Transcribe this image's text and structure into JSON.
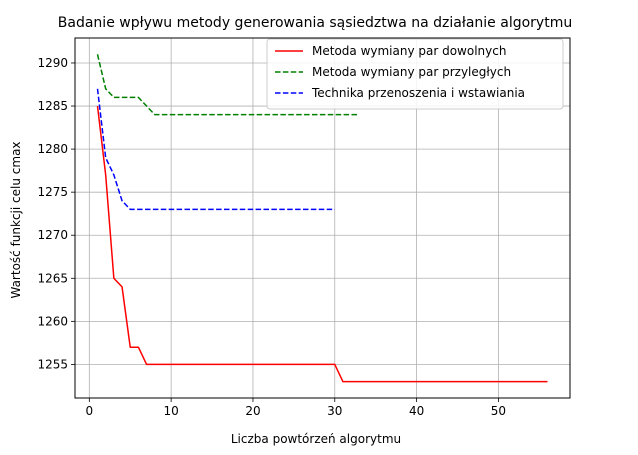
{
  "chart_data": {
    "type": "line",
    "title": "Badanie wpływu metody generowania sąsiedztwa na działanie algorytmu",
    "xlabel": "Liczba powtórzeń algorytmu",
    "ylabel": "Wartość funkcji celu cmax",
    "xlim": [
      -1.75,
      58.75
    ],
    "ylim": [
      1251.1,
      1292.9
    ],
    "xticks": [
      0,
      10,
      20,
      30,
      40,
      50
    ],
    "yticks": [
      1255,
      1260,
      1265,
      1270,
      1275,
      1280,
      1285,
      1290
    ],
    "grid": true,
    "legend_position": "top-right",
    "series": [
      {
        "name": "Metoda wymiany par dowolnych",
        "color": "#ff0000",
        "dash": "solid",
        "x": [
          1,
          2,
          3,
          4,
          5,
          6,
          7,
          30,
          31,
          56
        ],
        "y": [
          1285,
          1277,
          1265,
          1264,
          1257,
          1257,
          1255,
          1255,
          1253,
          1253
        ]
      },
      {
        "name": "Metoda wymiany par przyległych",
        "color": "#008000",
        "dash": "dashed",
        "x": [
          1,
          2,
          3,
          6,
          7,
          8,
          33
        ],
        "y": [
          1291,
          1287,
          1286,
          1286,
          1285,
          1284,
          1284
        ]
      },
      {
        "name": "Technika przenoszenia i wstawiania",
        "color": "#0000ff",
        "dash": "dashed",
        "x": [
          1,
          2,
          3,
          4,
          5,
          30
        ],
        "y": [
          1287,
          1279,
          1277,
          1274,
          1273,
          1273
        ]
      }
    ]
  }
}
